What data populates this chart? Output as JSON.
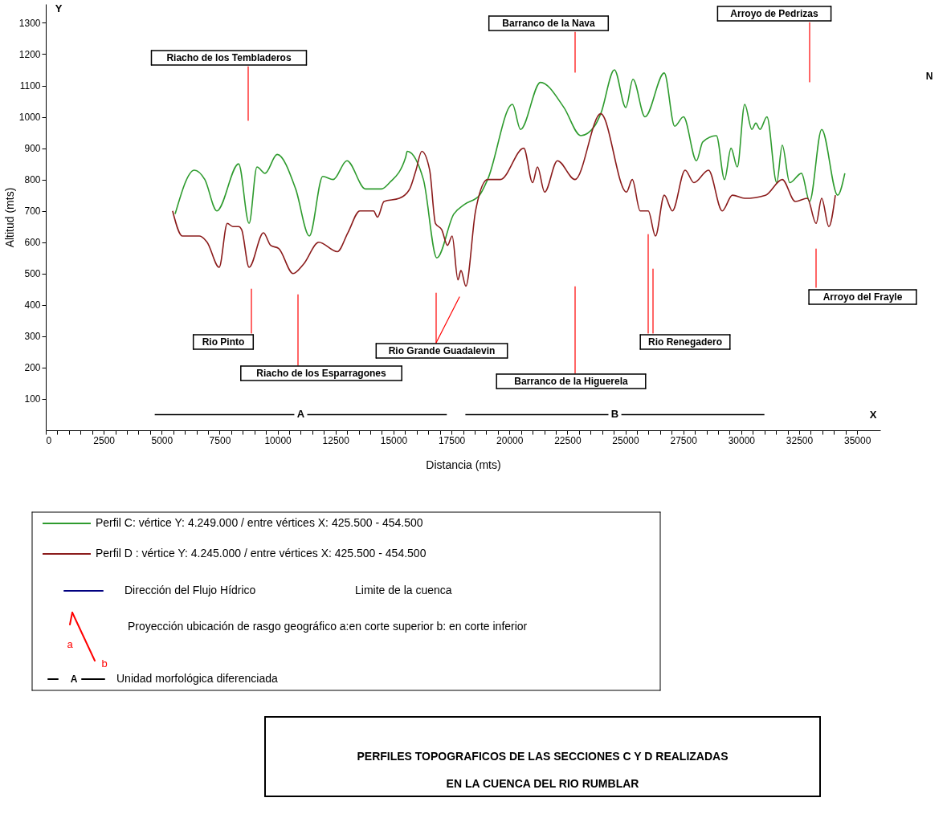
{
  "chart_data": {
    "type": "line",
    "xlabel": "Distancia  (mts)",
    "ylabel": "Altitud  (mts)",
    "title": "PERFILES TOPOGRAFICOS DE LAS SECCIONES C Y D REALIZADAS\nEN LA CUENCA DEL RIO  RUMBLAR",
    "xlim": [
      0,
      36000
    ],
    "ylim": [
      0,
      1360
    ],
    "xticks": [
      0,
      {
        "value": 500,
        "label": null
      },
      {
        "value": 1000,
        "label": null
      },
      {
        "value": 1500,
        "label": null
      },
      {
        "value": 2000,
        "label": null
      },
      2500,
      {
        "value": 3000,
        "label": null
      },
      {
        "value": 3500,
        "label": null
      },
      {
        "value": 4000,
        "label": null
      },
      {
        "value": 4500,
        "label": null
      },
      5000,
      {
        "value": 5500,
        "label": null
      },
      {
        "value": 6000,
        "label": null
      },
      {
        "value": 6500,
        "label": null
      },
      {
        "value": 7000,
        "label": null
      },
      7500,
      {
        "value": 8000,
        "label": null
      },
      {
        "value": 8500,
        "label": null
      },
      {
        "value": 9000,
        "label": null
      },
      {
        "value": 9500,
        "label": null
      },
      10000,
      {
        "value": 10500,
        "label": null
      },
      {
        "value": 11000,
        "label": null
      },
      {
        "value": 11500,
        "label": null
      },
      {
        "value": 12000,
        "label": null
      },
      12500,
      {
        "value": 13000,
        "label": null
      },
      {
        "value": 13500,
        "label": null
      },
      {
        "value": 14000,
        "label": null
      },
      {
        "value": 14500,
        "label": null
      },
      15000,
      {
        "value": 15500,
        "label": null
      },
      {
        "value": 16000,
        "label": null
      },
      {
        "value": 16500,
        "label": null
      },
      {
        "value": 17000,
        "label": null
      },
      17500,
      {
        "value": 18000,
        "label": null
      },
      {
        "value": 18500,
        "label": null
      },
      {
        "value": 19000,
        "label": null
      },
      {
        "value": 19500,
        "label": null
      },
      20000,
      {
        "value": 20500,
        "label": null
      },
      {
        "value": 21000,
        "label": null
      },
      {
        "value": 21500,
        "label": null
      },
      {
        "value": 22000,
        "label": null
      },
      22500,
      {
        "value": 23000,
        "label": null
      },
      {
        "value": 23500,
        "label": null
      },
      {
        "value": 24000,
        "label": null
      },
      {
        "value": 24500,
        "label": null
      },
      25000,
      {
        "value": 25500,
        "label": null
      },
      {
        "value": 26000,
        "label": null
      },
      {
        "value": 26500,
        "label": null
      },
      {
        "value": 27000,
        "label": null
      },
      27500,
      {
        "value": 28000,
        "label": null
      },
      {
        "value": 28500,
        "label": null
      },
      {
        "value": 29000,
        "label": null
      },
      {
        "value": 29500,
        "label": null
      },
      30000,
      {
        "value": 30500,
        "label": null
      },
      {
        "value": 31000,
        "label": null
      },
      {
        "value": 31500,
        "label": null
      },
      {
        "value": 32000,
        "label": null
      },
      32500,
      {
        "value": 33000,
        "label": null
      },
      {
        "value": 33500,
        "label": null
      },
      {
        "value": 34000,
        "label": null
      },
      {
        "value": 34500,
        "label": null
      },
      35000
    ],
    "yticks": [
      100,
      200,
      300,
      400,
      500,
      600,
      700,
      800,
      900,
      1000,
      1100,
      1200,
      1300
    ],
    "grid": false,
    "legend": "bottom",
    "marker": "none",
    "line_style": "solid",
    "series": [
      {
        "name": "Perfil C:  vértice Y: 4.249.000  /  entre vértices X: 425.500 -  454.500",
        "color": "#2e9b2e",
        "x": [
          5580,
          6410,
          6860,
          7380,
          8320,
          8770,
          9110,
          9460,
          9980,
          10780,
          11370,
          11950,
          12400,
          12990,
          13790,
          14480,
          14830,
          15520,
          15590,
          16290,
          16870,
          17600,
          18050,
          18710,
          19060,
          20130,
          20480,
          21340,
          22350,
          23080,
          23670,
          23940,
          24530,
          25020,
          25330,
          25850,
          26680,
          27130,
          27510,
          28070,
          28340,
          28930,
          29280,
          29560,
          29830,
          30150,
          30460,
          30630,
          30810,
          31110,
          31530,
          31770,
          32090,
          32600,
          32950,
          33470,
          34160,
          34470
        ],
        "values": [
          690,
          830,
          800,
          700,
          850,
          660,
          840,
          820,
          880,
          770,
          620,
          810,
          800,
          860,
          770,
          770,
          790,
          870,
          890,
          800,
          550,
          690,
          720,
          750,
          800,
          1040,
          960,
          1110,
          1030,
          940,
          970,
          1010,
          1150,
          1030,
          1120,
          1000,
          1140,
          970,
          1000,
          860,
          920,
          940,
          800,
          900,
          840,
          1040,
          960,
          980,
          960,
          1000,
          790,
          910,
          790,
          820,
          730,
          960,
          750,
          820
        ]
      },
      {
        "name": "Perfil D : vértice Y: 4.245.000  /  entre vértices X: 425.500 -  454.500",
        "color": "#8b1c1c",
        "x": [
          5470,
          5890,
          6620,
          6960,
          7480,
          7830,
          8070,
          8320,
          8450,
          8770,
          9390,
          9700,
          10050,
          10670,
          11120,
          11780,
          12580,
          13030,
          13550,
          14140,
          14310,
          14590,
          15250,
          15700,
          15970,
          16220,
          16560,
          16810,
          17080,
          17330,
          17530,
          17780,
          17910,
          18120,
          18540,
          19060,
          19610,
          20620,
          21000,
          21210,
          21520,
          22070,
          22830,
          23940,
          25050,
          25300,
          25640,
          25990,
          26300,
          26680,
          27030,
          27580,
          27960,
          28590,
          29180,
          29620,
          30150,
          31050,
          31770,
          32330,
          32850,
          33230,
          33470,
          33780,
          34060
        ],
        "values": [
          700,
          620,
          620,
          600,
          520,
          660,
          650,
          650,
          640,
          520,
          630,
          590,
          580,
          500,
          530,
          600,
          570,
          630,
          700,
          700,
          680,
          730,
          740,
          770,
          830,
          890,
          830,
          660,
          640,
          590,
          620,
          480,
          510,
          460,
          700,
          800,
          800,
          900,
          790,
          840,
          760,
          860,
          800,
          1010,
          760,
          800,
          700,
          700,
          620,
          750,
          700,
          830,
          790,
          830,
          700,
          750,
          740,
          750,
          800,
          730,
          740,
          660,
          740,
          650,
          750
        ]
      },
      {
        "name": "A",
        "color": "#000000",
        "type": "line",
        "x": [
          4700,
          17300
        ],
        "values": [
          50,
          50
        ]
      },
      {
        "name": "B",
        "color": "#000000",
        "type": "line",
        "x": [
          18100,
          31000
        ],
        "values": [
          50,
          50
        ]
      }
    ],
    "annotations": [
      "Riacho de los Tembladeros",
      "Barranco de la Nava",
      "Arroyo de Pedrizas",
      "Rio Pinto",
      "Riacho de los Esparragones",
      "Rio Grande Guadalevin",
      "Barranco de la Higuerela",
      "Rio Renegadero",
      "Arroyo del Frayle",
      "Y",
      "X",
      "N",
      "Dirección del Flujo Hídrico",
      "Limite de la cuenca",
      "Proyección ubicación de rasgo geográfico a:en corte superior b: en corte inferior",
      "a",
      "b",
      "A",
      "Unidad morfológica diferenciada"
    ]
  }
}
